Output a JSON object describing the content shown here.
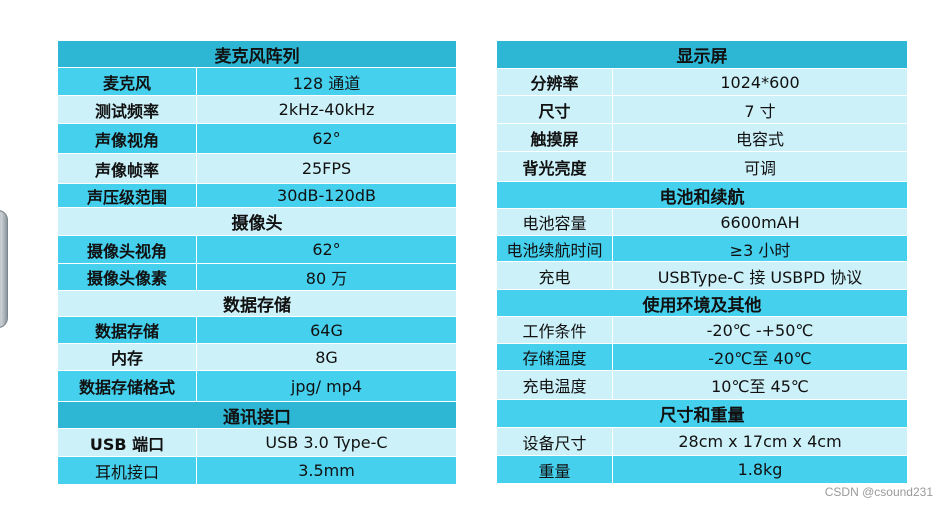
{
  "colors": {
    "header": "#2db7d5",
    "row_primary": "#45d0ee",
    "row_secondary": "#cdf1f9",
    "border": "#ffffff"
  },
  "left_table": {
    "sections": [
      {
        "title": "麦克风阵列",
        "rows": [
          {
            "label": "麦克风",
            "value": "128 通道"
          },
          {
            "label": "测试频率",
            "value": "2kHz-40kHz"
          },
          {
            "label": "声像视角",
            "value": "62°"
          },
          {
            "label": "声像帧率",
            "value": "25FPS"
          },
          {
            "label": "声压级范围",
            "value": "30dB-120dB"
          }
        ]
      },
      {
        "title": "摄像头",
        "rows": [
          {
            "label": "摄像头视角",
            "value": "62°"
          },
          {
            "label": "摄像头像素",
            "value": "80 万"
          }
        ]
      },
      {
        "title": "数据存储",
        "rows": [
          {
            "label": "数据存储",
            "value": "64G"
          },
          {
            "label": "内存",
            "value": "8G"
          },
          {
            "label": "数据存储格式",
            "value": "jpg/ mp4"
          }
        ]
      },
      {
        "title": "通讯接口",
        "rows": [
          {
            "label": "USB 端口",
            "value": "USB 3.0 Type-C"
          },
          {
            "label": "耳机接口",
            "value": "3.5mm"
          }
        ]
      }
    ]
  },
  "right_table": {
    "sections": [
      {
        "title": "显示屏",
        "rows": [
          {
            "label": "分辨率",
            "value": "1024*600"
          },
          {
            "label": "尺寸",
            "value": "7 寸"
          },
          {
            "label": "触摸屏",
            "value": "电容式"
          },
          {
            "label": "背光亮度",
            "value": "可调"
          }
        ]
      },
      {
        "title": "电池和续航",
        "rows": [
          {
            "label": "电池容量",
            "value": "6600mAH"
          },
          {
            "label": "电池续航时间",
            "value": "≥3 小时"
          },
          {
            "label": "充电",
            "value": "USBType-C 接 USBPD 协议"
          }
        ]
      },
      {
        "title": "使用环境及其他",
        "rows": [
          {
            "label": "工作条件",
            "value": "-20℃ -+50℃"
          },
          {
            "label": "存储温度",
            "value": "-20℃至 40℃"
          },
          {
            "label": "充电温度",
            "value": "10℃至 45℃"
          }
        ]
      },
      {
        "title": "尺寸和重量",
        "rows": [
          {
            "label": "设备尺寸",
            "value": "28cm x 17cm x 4cm"
          },
          {
            "label": "重量",
            "value": "1.8kg"
          }
        ]
      }
    ]
  },
  "watermark": "CSDN @csound231"
}
